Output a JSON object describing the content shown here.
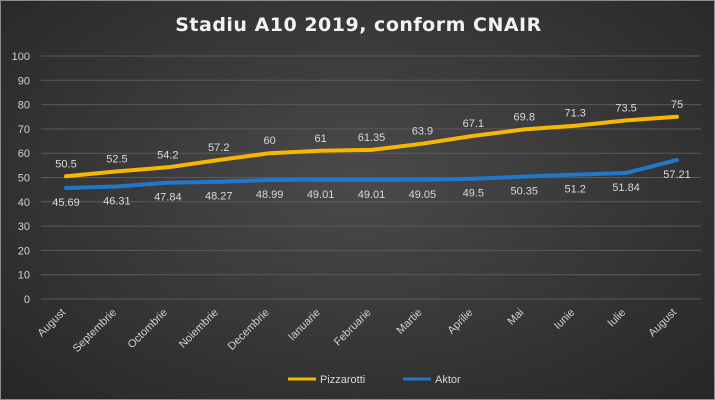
{
  "chart_data": {
    "type": "line",
    "title": "Stadiu A10 2019, conform CNAIR",
    "categories": [
      "August",
      "Septembrie",
      "Octombrie",
      "Noiembrie",
      "Decembrie",
      "Ianuarie",
      "Februarie",
      "Martie",
      "Aprilie",
      "Mai",
      "Iunie",
      "Iulie",
      "August"
    ],
    "series": [
      {
        "name": "Pizzarotti",
        "color": "#f5b800",
        "values": [
          50.5,
          52.5,
          54.2,
          57.2,
          60,
          61,
          61.35,
          63.9,
          67.1,
          69.8,
          71.3,
          73.5,
          75
        ],
        "labels": [
          "50.5",
          "52.5",
          "54.2",
          "57.2",
          "60",
          "61",
          "61.35",
          "63.9",
          "67.1",
          "69.8",
          "71.3",
          "73.5",
          "75"
        ]
      },
      {
        "name": "Aktor",
        "color": "#1f78c8",
        "values": [
          45.69,
          46.31,
          47.84,
          48.27,
          48.99,
          49.01,
          49.01,
          49.05,
          49.5,
          50.35,
          51.2,
          51.84,
          57.21
        ],
        "labels": [
          "45.69",
          "46.31",
          "47.84",
          "48.27",
          "48.99",
          "49.01",
          "49.01",
          "49.05",
          "49.5",
          "50.35",
          "51.2",
          "51.84",
          "57.21"
        ]
      }
    ],
    "ylim": [
      0,
      100
    ],
    "yticks": [
      "0",
      "10",
      "20",
      "30",
      "40",
      "50",
      "60",
      "70",
      "80",
      "90",
      "100"
    ],
    "grid": true,
    "legend": "bottom"
  }
}
